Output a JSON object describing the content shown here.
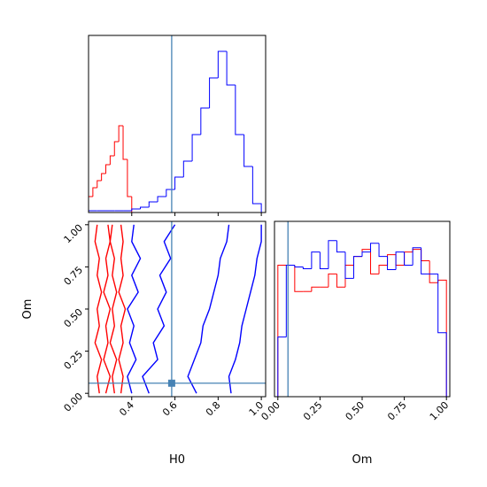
{
  "chart_data": [
    {
      "type": "histogram",
      "xlim": [
        0.2,
        1.02
      ],
      "ylim": [
        0,
        100
      ],
      "truth": 0.585,
      "truth_color": "#4682b4",
      "series": [
        {
          "color": "#ff0000",
          "bins": [
            0.2,
            0.22,
            0.24,
            0.26,
            0.28,
            0.3,
            0.32,
            0.34,
            0.36,
            0.38,
            0.4,
            0.42
          ],
          "values": [
            9,
            14,
            18,
            22,
            27,
            32,
            40,
            49,
            30,
            9,
            0
          ]
        },
        {
          "color": "#0000ff",
          "bins": [
            0.2,
            0.24,
            0.28,
            0.32,
            0.36,
            0.4,
            0.44,
            0.48,
            0.52,
            0.56,
            0.6,
            0.64,
            0.68,
            0.72,
            0.76,
            0.8,
            0.84,
            0.88,
            0.92,
            0.96,
            1.0
          ],
          "values": [
            1,
            1,
            1,
            1,
            1,
            2,
            3,
            6,
            9,
            13,
            20,
            29,
            44,
            59,
            76,
            91,
            72,
            44,
            26,
            5
          ]
        }
      ]
    },
    {
      "type": "contour",
      "xlabel": "H0",
      "ylabel": "Om",
      "xlim": [
        0.2,
        1.02
      ],
      "ylim": [
        -0.02,
        1.02
      ],
      "xticks": [
        0.4,
        0.6,
        0.8,
        {
          "value": 1.0,
          "label": "1.0"
        }
      ],
      "yticks": [
        {
          "value": 0,
          "label": "0.00"
        },
        0.25,
        {
          "value": 0.5,
          "label": "0.50"
        },
        0.75,
        {
          "value": 1,
          "label": "1.00"
        }
      ],
      "truth_x": 0.585,
      "truth_y": 0.06,
      "truth_color": "#4682b4",
      "series": [
        {
          "color": "#ff0000",
          "x": [
            0.25,
            0.24,
            0.26,
            0.23,
            0.25,
            0.24,
            0.26,
            0.24,
            0.25,
            0.23,
            0.24
          ],
          "y": [
            0,
            0.1,
            0.2,
            0.3,
            0.4,
            0.5,
            0.6,
            0.7,
            0.8,
            0.9,
            1.0
          ]
        },
        {
          "color": "#ff0000",
          "x": [
            0.28,
            0.3,
            0.27,
            0.29,
            0.28,
            0.3,
            0.27,
            0.29,
            0.28,
            0.3,
            0.29
          ],
          "y": [
            0,
            0.1,
            0.2,
            0.3,
            0.4,
            0.5,
            0.6,
            0.7,
            0.8,
            0.9,
            1.0
          ]
        },
        {
          "color": "#ff0000",
          "x": [
            0.32,
            0.31,
            0.33,
            0.3,
            0.32,
            0.31,
            0.33,
            0.31,
            0.32,
            0.3,
            0.31
          ],
          "y": [
            0,
            0.1,
            0.2,
            0.3,
            0.4,
            0.5,
            0.6,
            0.7,
            0.8,
            0.9,
            1.0
          ]
        },
        {
          "color": "#ff0000",
          "x": [
            0.35,
            0.36,
            0.34,
            0.36,
            0.35,
            0.37,
            0.34,
            0.36,
            0.35,
            0.36,
            0.35
          ],
          "y": [
            0,
            0.1,
            0.2,
            0.3,
            0.4,
            0.5,
            0.6,
            0.7,
            0.8,
            0.9,
            1.0
          ]
        },
        {
          "color": "#0000ff",
          "x": [
            0.4,
            0.38,
            0.42,
            0.39,
            0.41,
            0.38,
            0.43,
            0.4,
            0.44,
            0.4,
            0.41
          ],
          "y": [
            0,
            0.1,
            0.2,
            0.3,
            0.4,
            0.5,
            0.6,
            0.7,
            0.8,
            0.9,
            1.0
          ]
        },
        {
          "color": "#0000ff",
          "x": [
            0.48,
            0.45,
            0.52,
            0.5,
            0.55,
            0.52,
            0.56,
            0.53,
            0.58,
            0.55,
            0.6
          ],
          "y": [
            0,
            0.1,
            0.2,
            0.3,
            0.4,
            0.5,
            0.6,
            0.7,
            0.8,
            0.9,
            1.0
          ]
        },
        {
          "color": "#0000ff",
          "x": [
            0.7,
            0.66,
            0.69,
            0.72,
            0.73,
            0.76,
            0.78,
            0.8,
            0.81,
            0.84,
            0.85
          ],
          "y": [
            0,
            0.1,
            0.2,
            0.3,
            0.4,
            0.5,
            0.6,
            0.7,
            0.8,
            0.9,
            1.0
          ]
        },
        {
          "color": "#0000ff",
          "x": [
            0.86,
            0.85,
            0.88,
            0.9,
            0.91,
            0.93,
            0.95,
            0.97,
            0.98,
            1.0,
            1.0
          ],
          "y": [
            0,
            0.1,
            0.2,
            0.3,
            0.4,
            0.5,
            0.6,
            0.7,
            0.8,
            0.9,
            1.0
          ]
        }
      ]
    },
    {
      "type": "histogram",
      "xlabel": "Om",
      "xlim": [
        -0.02,
        1.02
      ],
      "ylim": [
        0,
        200
      ],
      "truth": 0.06,
      "truth_color": "#4682b4",
      "xticks": [
        {
          "value": 0,
          "label": "0.00"
        },
        0.25,
        {
          "value": 0.5,
          "label": "0.50"
        },
        0.75,
        {
          "value": 1,
          "label": "1.00"
        }
      ],
      "series": [
        {
          "color": "#ff0000",
          "bins": [
            0,
            0.05,
            0.1,
            0.15,
            0.2,
            0.25,
            0.3,
            0.35,
            0.4,
            0.45,
            0.5,
            0.55,
            0.6,
            0.65,
            0.7,
            0.75,
            0.8,
            0.85,
            0.9,
            0.95,
            1.0
          ],
          "values": [
            150,
            150,
            120,
            120,
            125,
            125,
            140,
            125,
            150,
            160,
            168,
            140,
            150,
            162,
            150,
            165,
            168,
            155,
            130,
            133
          ]
        },
        {
          "color": "#0000ff",
          "bins": [
            0,
            0.05,
            0.1,
            0.15,
            0.2,
            0.25,
            0.3,
            0.35,
            0.4,
            0.45,
            0.5,
            0.55,
            0.6,
            0.65,
            0.7,
            0.75,
            0.8,
            0.85,
            0.9,
            0.95,
            1.0
          ],
          "values": [
            68,
            150,
            148,
            146,
            165,
            146,
            178,
            165,
            135,
            160,
            165,
            175,
            160,
            145,
            165,
            150,
            170,
            140,
            140,
            73
          ]
        }
      ]
    }
  ]
}
